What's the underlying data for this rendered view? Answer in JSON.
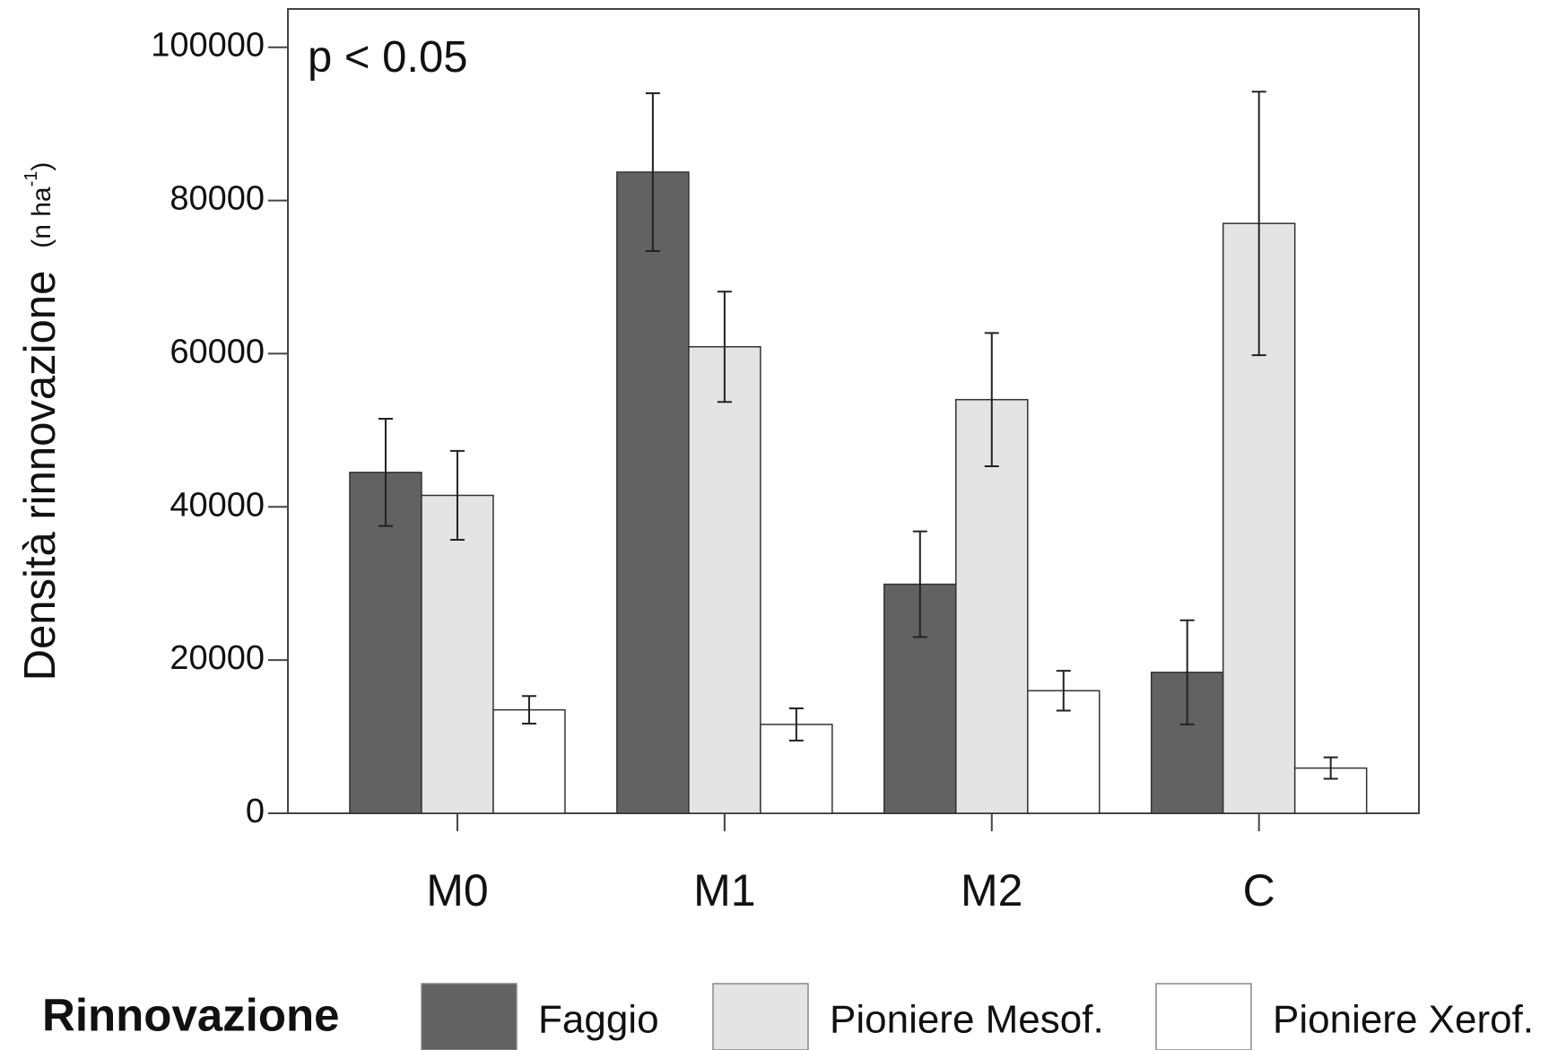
{
  "chart_data": {
    "type": "bar",
    "y_label": "Densità rinnovazione",
    "y_unit_parts": [
      "(n ha",
      "-1",
      ")"
    ],
    "annotation": "p < 0.05",
    "legend_title": "Rinnovazione",
    "categories": [
      "M0",
      "M1",
      "M2",
      "C"
    ],
    "series": [
      {
        "name": "Faggio",
        "color": "#626262",
        "values": [
          44500,
          83700,
          29900,
          18400
        ],
        "errors": [
          7000,
          10300,
          6900,
          6800
        ]
      },
      {
        "name": "Pioniere Mesof.",
        "color": "#e4e4e4",
        "values": [
          41500,
          60900,
          54000,
          77000
        ],
        "errors": [
          5800,
          7200,
          8700,
          17200
        ]
      },
      {
        "name": "Pioniere Xerof.",
        "color": "#ffffff",
        "values": [
          13500,
          11600,
          16000,
          5900
        ],
        "errors": [
          1800,
          2100,
          2600,
          1400
        ]
      }
    ],
    "ylim": [
      0,
      105000
    ],
    "yticks": [
      0,
      20000,
      40000,
      60000,
      80000,
      100000
    ],
    "legend": "bottom"
  }
}
